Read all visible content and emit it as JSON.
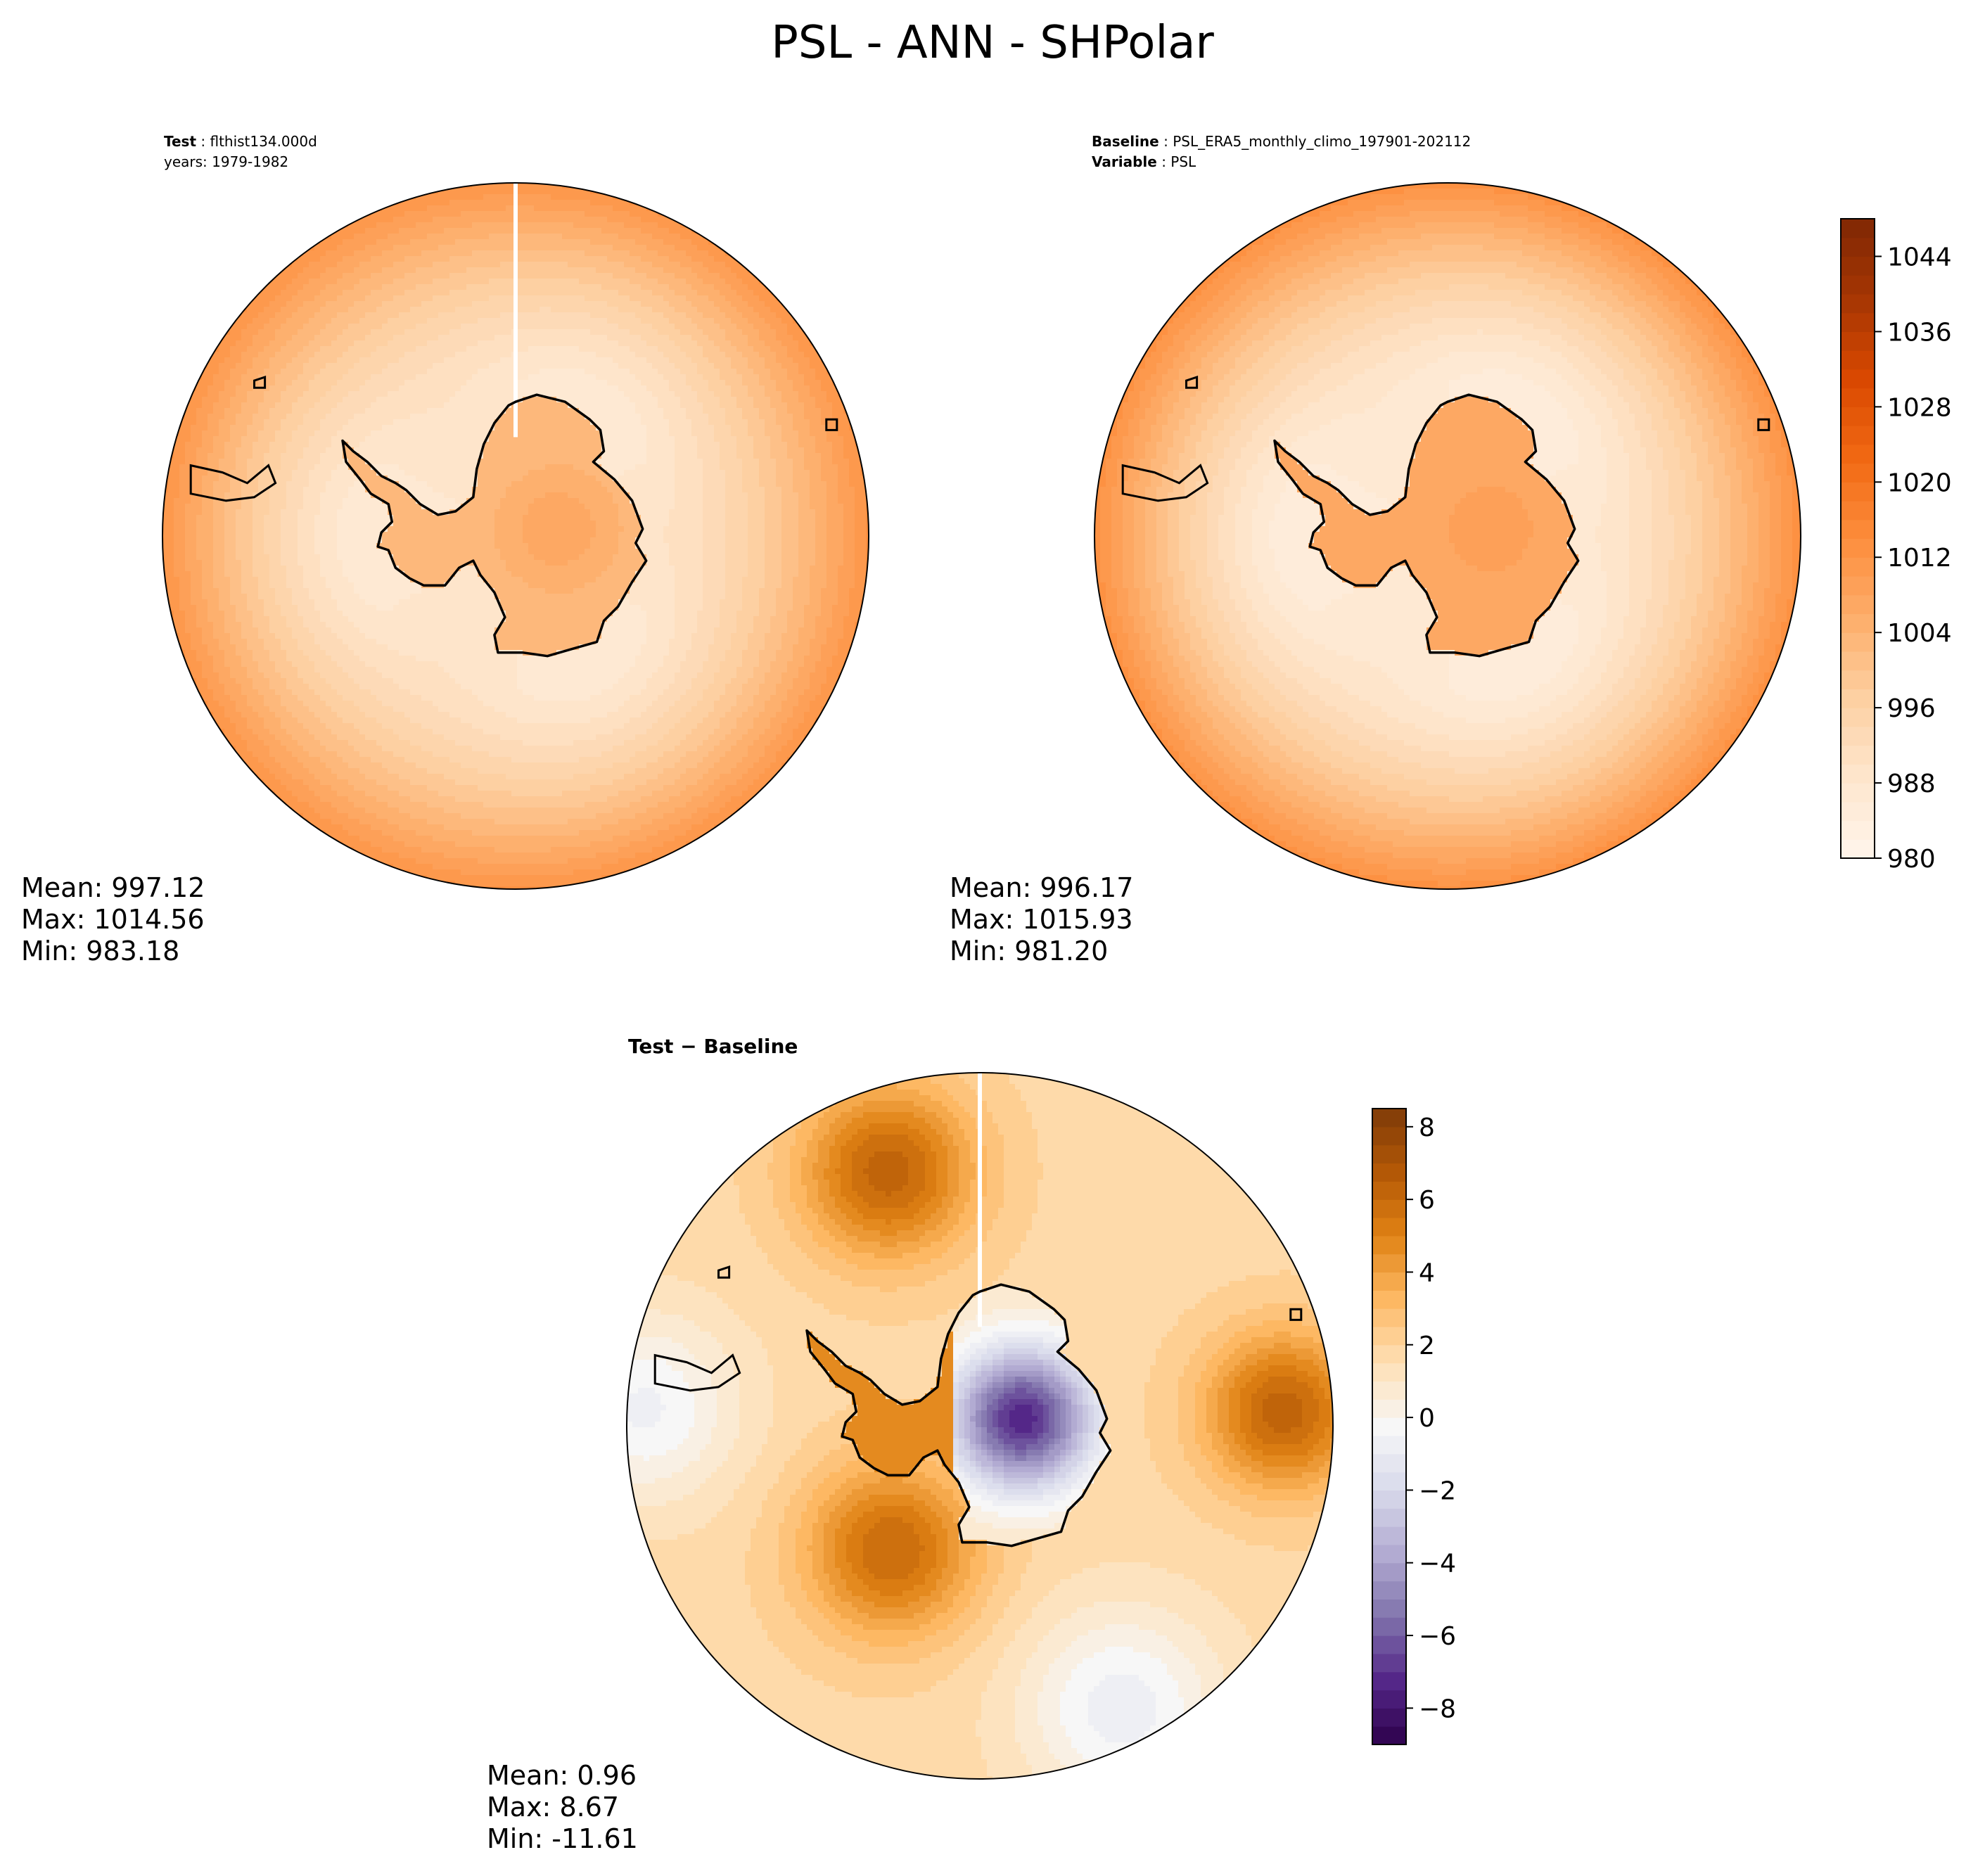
{
  "title": "PSL - ANN - SHPolar",
  "colors": {
    "seq": [
      "#fff5eb",
      "#fee6ce",
      "#fdd0a2",
      "#fdae6b",
      "#fd8d3c",
      "#f16913",
      "#d94801",
      "#a63603",
      "#7f2704"
    ],
    "div": [
      "#2d004b",
      "#542788",
      "#8073ac",
      "#b2abd2",
      "#d8daeb",
      "#f7f7f7",
      "#fee0b6",
      "#fdb863",
      "#e08214",
      "#b35806",
      "#7f3b08"
    ],
    "coast": "#000000"
  },
  "chart_data": [
    {
      "type": "heatmap",
      "projection": "south-polar-stereographic",
      "label_key": "Test",
      "label_value": "flthist134.000d",
      "label_line2": "years: 1979-1982",
      "stats": [
        "Mean: 997.12",
        "Max: 1014.56",
        "Min: 983.18"
      ],
      "field": {
        "ocean_center": 988,
        "ocean_edge": 1012,
        "land": 1003,
        "ridge": 1008
      }
    },
    {
      "type": "heatmap",
      "projection": "south-polar-stereographic",
      "label_key": "Baseline",
      "label_value": "PSL_ERA5_monthly_climo_197901-202112",
      "label_key2": "Variable",
      "label_value2": "PSL",
      "stats": [
        "Mean: 996.17",
        "Max: 1015.93",
        "Min: 981.20"
      ],
      "field": {
        "ocean_center": 986,
        "ocean_edge": 1013,
        "land": 1006,
        "ridge": 1010
      },
      "colorbar": {
        "vmin": 980,
        "vmax": 1048,
        "ticks": [
          980,
          988,
          996,
          1004,
          1012,
          1020,
          1028,
          1036,
          1044
        ]
      }
    },
    {
      "type": "heatmap",
      "projection": "south-polar-stereographic",
      "label_key": "Test − Baseline",
      "stats": [
        "Mean:  0.96",
        "Max:  8.67",
        "Min: -11.61"
      ],
      "colorbar": {
        "vmin": -9,
        "vmax": 8.5,
        "ticks": [
          "8",
          "6",
          "4",
          "2",
          "0",
          "−2",
          "−4",
          "−6",
          "−8"
        ],
        "tick_values": [
          8,
          6,
          4,
          2,
          0,
          -2,
          -4,
          -6,
          -8
        ]
      }
    }
  ]
}
